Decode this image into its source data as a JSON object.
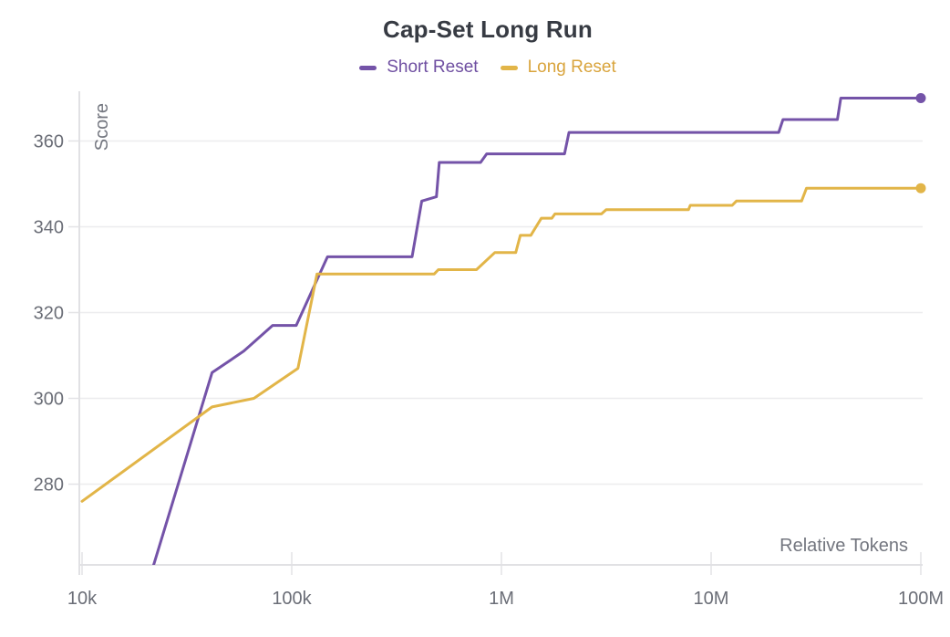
{
  "chart": {
    "title": "Cap-Set Long Run",
    "x_axis_label": "Relative Tokens",
    "y_axis_label": "Score"
  },
  "chart_data": {
    "type": "line",
    "title": "Cap-Set Long Run",
    "xlabel": "Relative Tokens",
    "ylabel": "Score",
    "x_scale": "log10",
    "xlim": [
      10000,
      100000000
    ],
    "ylim": [
      261,
      372
    ],
    "grid": "horizontal",
    "legend_position": "top-center",
    "x_ticks": [
      {
        "label": "10k",
        "value": 10000
      },
      {
        "label": "100k",
        "value": 100000
      },
      {
        "label": "1M",
        "value": 1000000
      },
      {
        "label": "10M",
        "value": 10000000
      },
      {
        "label": "100M",
        "value": 100000000
      }
    ],
    "y_ticks": [
      280,
      300,
      320,
      340,
      360
    ],
    "series": [
      {
        "name": "Short Reset",
        "color": "#7453a8",
        "end_dot": true,
        "points": [
          [
            21900,
            261
          ],
          [
            41700,
            306
          ],
          [
            59000,
            311
          ],
          [
            81000,
            317
          ],
          [
            105000,
            317
          ],
          [
            148000,
            333
          ],
          [
            375000,
            333
          ],
          [
            417000,
            346
          ],
          [
            490000,
            347
          ],
          [
            505000,
            355
          ],
          [
            795000,
            355
          ],
          [
            850000,
            357
          ],
          [
            2000000,
            357
          ],
          [
            2100000,
            362
          ],
          [
            21000000,
            362
          ],
          [
            22000000,
            365
          ],
          [
            40000000,
            365
          ],
          [
            41500000,
            370
          ],
          [
            100000000,
            370
          ]
        ]
      },
      {
        "name": "Long Reset",
        "color": "#e2b548",
        "end_dot": true,
        "points": [
          [
            10000,
            276
          ],
          [
            41700,
            298
          ],
          [
            66000,
            300
          ],
          [
            107000,
            307
          ],
          [
            132000,
            329
          ],
          [
            478000,
            329
          ],
          [
            500000,
            330
          ],
          [
            760000,
            330
          ],
          [
            930000,
            334
          ],
          [
            1170000,
            334
          ],
          [
            1230000,
            338
          ],
          [
            1380000,
            338
          ],
          [
            1550000,
            342
          ],
          [
            1740000,
            342
          ],
          [
            1800000,
            343
          ],
          [
            3000000,
            343
          ],
          [
            3160000,
            344
          ],
          [
            7800000,
            344
          ],
          [
            7950000,
            345
          ],
          [
            12600000,
            345
          ],
          [
            13200000,
            346
          ],
          [
            27000000,
            346
          ],
          [
            28500000,
            349
          ],
          [
            100000000,
            349
          ]
        ]
      }
    ]
  }
}
